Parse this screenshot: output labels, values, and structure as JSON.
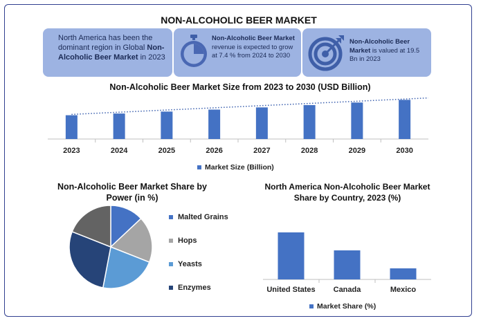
{
  "title": "NON-ALCOHOLIC BEER MARKET",
  "cards": {
    "region": {
      "text_pre": "North America has been the dominant region in Global ",
      "text_bold": "Non-Alcoholic Beer Market",
      "text_post": " in 2023"
    },
    "growth": {
      "text_bold": "Non-Alcoholic Beer Market",
      "text_post": " revenue is expected to grow at 7.4 % from 2024 to 2030",
      "icon": "stopwatch-icon"
    },
    "value": {
      "text_bold": "Non-Alcoholic Beer Market",
      "text_post": " is valued at 19.5 Bn in 2023",
      "icon": "target-icon"
    }
  },
  "colors": {
    "bar": "#4472c4",
    "card": "#9db3e2",
    "border": "#2f3e8f"
  },
  "chart_data": [
    {
      "type": "bar",
      "title": "Non-Alcoholic Beer Market Size from 2023 to 2030 (USD Billion)",
      "categories": [
        "2023",
        "2024",
        "2025",
        "2026",
        "2027",
        "2028",
        "2029",
        "2030"
      ],
      "series": [
        {
          "name": "Market Size (Billion)",
          "values": [
            19.5,
            20.9,
            22.5,
            24.1,
            25.9,
            27.8,
            29.9,
            32.1
          ]
        }
      ],
      "trendline": "dotted",
      "ylim": [
        0,
        34
      ],
      "legend": "bottom"
    },
    {
      "type": "pie",
      "title": "Non-Alcoholic Beer  Market Share by Power (in %)",
      "labels": [
        "Malted Grains",
        "Hops",
        "Yeasts",
        "Enzymes"
      ],
      "values": [
        13,
        18,
        22,
        28
      ],
      "others_value": 19,
      "colors": [
        "#4472c4",
        "#a5a5a5",
        "#5b9bd5",
        "#264478"
      ],
      "others_color": "#636363",
      "legend": "right"
    },
    {
      "type": "bar",
      "title": "North America Non-Alcoholic Beer Market  Share by Country, 2023 (%)",
      "categories": [
        "United States",
        "Canada",
        "Mexico"
      ],
      "series": [
        {
          "name": "Market Share (%)",
          "values": [
            68,
            42,
            16
          ]
        }
      ],
      "ylim": [
        0,
        80
      ],
      "legend": "bottom"
    }
  ]
}
